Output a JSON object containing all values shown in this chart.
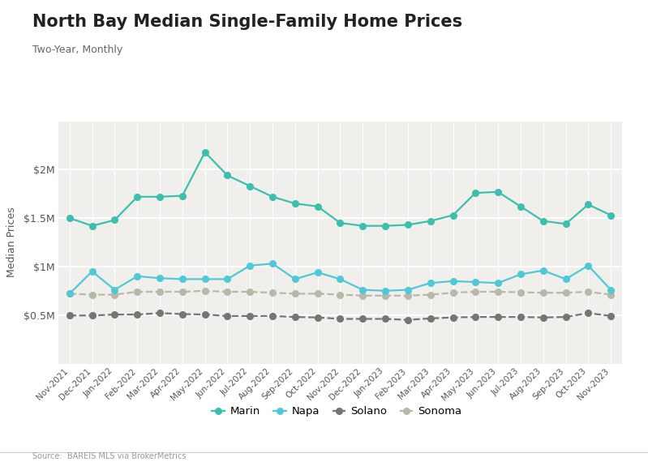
{
  "title": "North Bay Median Single-Family Home Prices",
  "subtitle": "Two-Year, Monthly",
  "ylabel": "Median Prices",
  "source": "Source:  BAREIS MLS via BrokerMetrics",
  "background_color": "#ffffff",
  "plot_background": "#f0efeb",
  "labels": [
    "Nov-2021",
    "Dec-2021",
    "Jan-2022",
    "Feb-2022",
    "Mar-2022",
    "Apr-2022",
    "May-2022",
    "Jun-2022",
    "Jul-2022",
    "Aug-2022",
    "Sep-2022",
    "Oct-2022",
    "Nov-2022",
    "Dec-2022",
    "Jan-2023",
    "Feb-2023",
    "Mar-2023",
    "Apr-2023",
    "May-2023",
    "Jun-2023",
    "Jul-2023",
    "Aug-2023",
    "Sep-2023",
    "Oct-2023",
    "Nov-2023"
  ],
  "marin": [
    1500000,
    1420000,
    1480000,
    1720000,
    1720000,
    1730000,
    2180000,
    1940000,
    1830000,
    1720000,
    1650000,
    1620000,
    1450000,
    1420000,
    1420000,
    1430000,
    1470000,
    1530000,
    1760000,
    1770000,
    1620000,
    1470000,
    1440000,
    1640000,
    1530000
  ],
  "napa": [
    720000,
    950000,
    760000,
    900000,
    880000,
    870000,
    870000,
    870000,
    1010000,
    1030000,
    870000,
    940000,
    870000,
    760000,
    750000,
    760000,
    830000,
    850000,
    840000,
    830000,
    920000,
    960000,
    870000,
    1010000,
    760000
  ],
  "solano": [
    495000,
    495000,
    505000,
    505000,
    520000,
    510000,
    505000,
    490000,
    490000,
    490000,
    480000,
    475000,
    460000,
    460000,
    460000,
    450000,
    465000,
    475000,
    480000,
    480000,
    480000,
    475000,
    480000,
    520000,
    490000
  ],
  "sonoma": [
    720000,
    710000,
    710000,
    740000,
    740000,
    740000,
    750000,
    740000,
    740000,
    730000,
    720000,
    720000,
    710000,
    700000,
    700000,
    700000,
    710000,
    730000,
    740000,
    740000,
    735000,
    730000,
    730000,
    740000,
    710000
  ],
  "marin_color": "#3dbfb0",
  "napa_color": "#50c8d8",
  "solano_color": "#757575",
  "sonoma_color": "#b8b8a8",
  "ylim_min": 0,
  "ylim_max": 2500000,
  "yticks": [
    500000,
    1000000,
    1500000,
    2000000
  ],
  "ytick_labels": [
    "$0.5M",
    "$1M",
    "$1.5M",
    "$2M"
  ]
}
